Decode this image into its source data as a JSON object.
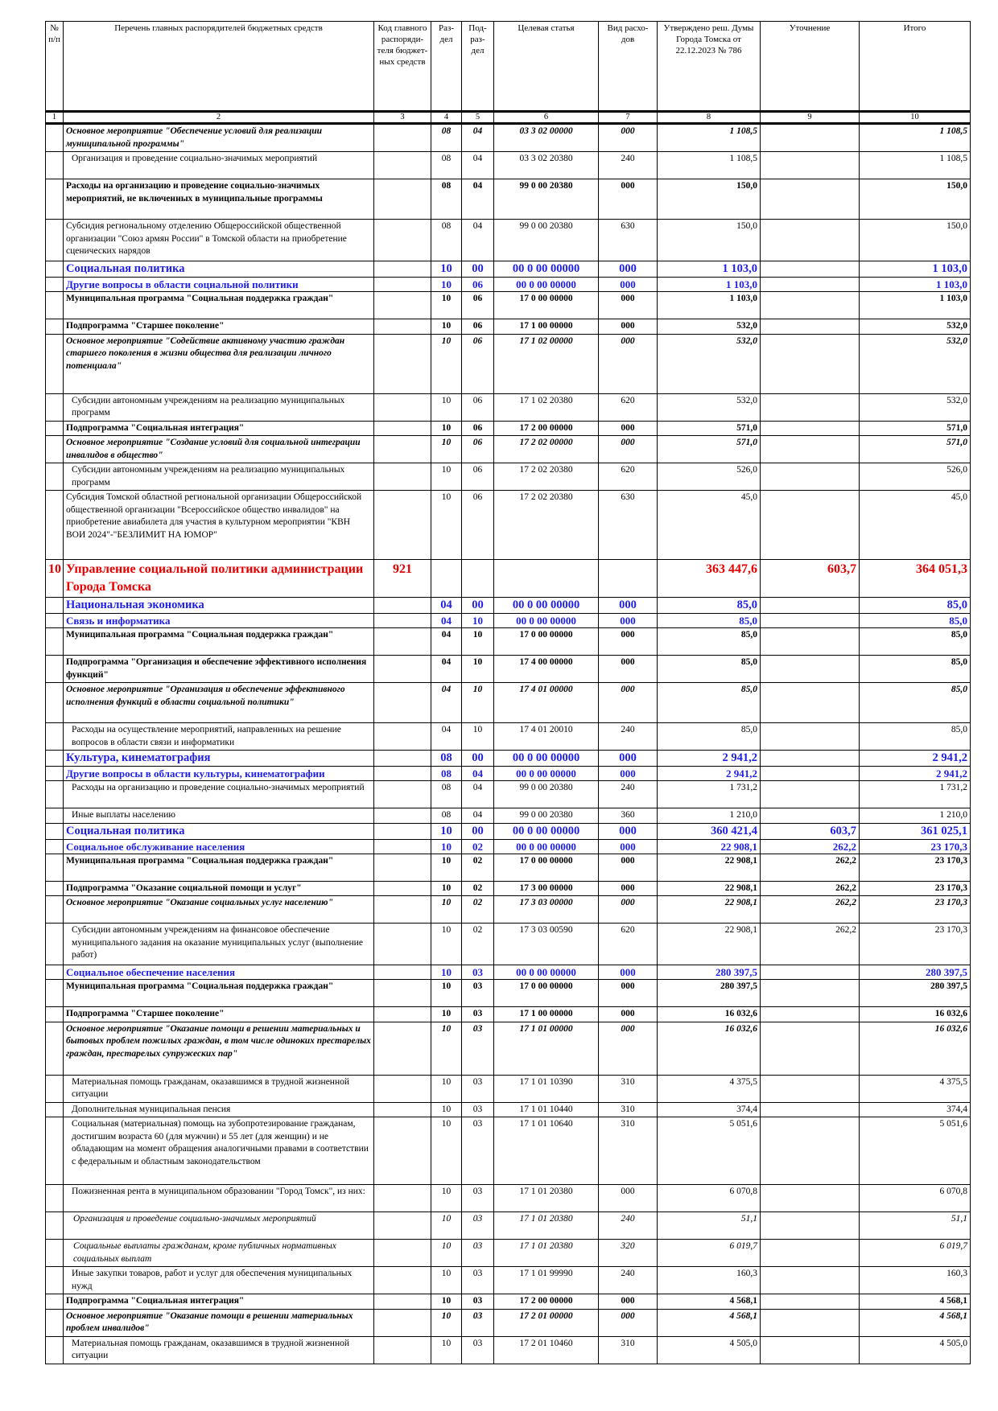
{
  "headers": {
    "c1": "№ п/п",
    "c2": "Перечень главных распорядителей бюджетных средств",
    "c3": "Код главного распоряди-теля бюджет-ных средств",
    "c4": "Раз-дел",
    "c5": "Под-раз-дел",
    "c6": "Целевая статья",
    "c7": "Вид расхо-дов",
    "c8": "Утверждено реш. Думы Города Томска от 22.12.2023 № 786",
    "c9": "Уточнение",
    "c10": "Итого"
  },
  "col_numbers": [
    "1",
    "2",
    "3",
    "4",
    "5",
    "6",
    "7",
    "8",
    "9",
    "10"
  ],
  "rows": [
    {
      "style": "ital",
      "h": 34,
      "n": "",
      "name": "Основное мероприятие \"Обеспечение условий для реализации муниципальной программы\"",
      "code": "",
      "rz": "08",
      "pr": "04",
      "cs": "03 3 02 00000",
      "vr": "000",
      "a": "1 108,5",
      "u": "",
      "t": "1 108,5"
    },
    {
      "style": "ind",
      "h": 34,
      "n": "",
      "name": "Организация и проведение социально-значимых мероприятий",
      "code": "",
      "rz": "08",
      "pr": "04",
      "cs": "03 3 02 20380",
      "vr": "240",
      "a": "1 108,5",
      "u": "",
      "t": "1 108,5"
    },
    {
      "style": "bold",
      "h": 50,
      "n": "",
      "name": "Расходы на организацию и проведение социально-значимых мероприятий, не включенных в муниципальные программы",
      "code": "",
      "rz": "08",
      "pr": "04",
      "cs": "99 0 00 20380",
      "vr": "000",
      "a": "150,0",
      "u": "",
      "t": "150,0"
    },
    {
      "style": "",
      "h": 52,
      "n": "",
      "name": "Субсидия региональному отделению Общероссийской общественной организации \"Союз армян России\" в Томской области на приобретение сценических нарядов",
      "code": "",
      "rz": "08",
      "pr": "04",
      "cs": "99 0 00 20380",
      "vr": "630",
      "a": "150,0",
      "u": "",
      "t": "150,0"
    },
    {
      "style": "section",
      "h": 19,
      "n": "",
      "name": "Социальная политика",
      "code": "",
      "rz": "10",
      "pr": "00",
      "cs": "00 0 00 00000",
      "vr": "000",
      "a": "1 103,0",
      "u": "",
      "t": "1 103,0"
    },
    {
      "style": "sub",
      "h": 17,
      "n": "",
      "name": "Другие вопросы в области социальной политики",
      "code": "",
      "rz": "10",
      "pr": "06",
      "cs": "00 0 00 00000",
      "vr": "000",
      "a": "1 103,0",
      "u": "",
      "t": "1 103,0"
    },
    {
      "style": "bold",
      "h": 34,
      "n": "",
      "name": "Муниципальная программа \"Социальная поддержка граждан\"",
      "code": "",
      "rz": "10",
      "pr": "06",
      "cs": "17 0 00 00000",
      "vr": "000",
      "a": "1 103,0",
      "u": "",
      "t": "1 103,0"
    },
    {
      "style": "bold",
      "h": 17,
      "n": "",
      "name": "Подпрограмма \"Старшее поколение\"",
      "code": "",
      "rz": "10",
      "pr": "06",
      "cs": "17 1 00 00000",
      "vr": "000",
      "a": "532,0",
      "u": "",
      "t": "532,0"
    },
    {
      "style": "ital",
      "h": 74,
      "n": "",
      "name": "Основное мероприятие \"Содействие активному участию граждан старшего поколения в жизни общества для реализации личного потенциала\"",
      "code": "",
      "rz": "10",
      "pr": "06",
      "cs": "17 1 02 00000",
      "vr": "000",
      "a": "532,0",
      "u": "",
      "t": "532,0"
    },
    {
      "style": "ind",
      "h": 34,
      "n": "",
      "name": "Субсидии автономным учреждениям на реализацию муниципальных программ",
      "code": "",
      "rz": "10",
      "pr": "06",
      "cs": "17 1 02 20380",
      "vr": "620",
      "a": "532,0",
      "u": "",
      "t": "532,0"
    },
    {
      "style": "bold",
      "h": 17,
      "n": "",
      "name": "Подпрограмма \"Социальная интеграция\"",
      "code": "",
      "rz": "10",
      "pr": "06",
      "cs": "17 2 00 00000",
      "vr": "000",
      "a": "571,0",
      "u": "",
      "t": "571,0"
    },
    {
      "style": "ital",
      "h": 34,
      "n": "",
      "name": "Основное мероприятие \"Создание условий для социальной интеграции инвалидов в общество\"",
      "code": "",
      "rz": "10",
      "pr": "06",
      "cs": "17 2 02 00000",
      "vr": "000",
      "a": "571,0",
      "u": "",
      "t": "571,0"
    },
    {
      "style": "ind",
      "h": 34,
      "n": "",
      "name": "Субсидии автономным учреждениям на реализацию муниципальных программ",
      "code": "",
      "rz": "10",
      "pr": "06",
      "cs": "17 2 02 20380",
      "vr": "620",
      "a": "526,0",
      "u": "",
      "t": "526,0"
    },
    {
      "style": "",
      "h": 86,
      "n": "",
      "name": "Субсидия Томской областной региональной организации Общероссийской общественной организации \"Всероссийское общество инвалидов\" на приобретение авиабилета для участия в культурном мероприятии \"КВН ВОИ 2024\"-\"БЕЗЛИМИТ НА ЮМОР\"",
      "code": "",
      "rz": "10",
      "pr": "06",
      "cs": "17 2 02 20380",
      "vr": "630",
      "a": "45,0",
      "u": "",
      "t": "45,0"
    },
    {
      "style": "org",
      "h": 46,
      "n": "10",
      "name": "Управление социальной политики администрации Города Томска",
      "code": "921",
      "rz": "",
      "pr": "",
      "cs": "",
      "vr": "",
      "a": "363 447,6",
      "u": "603,7",
      "t": "364 051,3"
    },
    {
      "style": "section",
      "h": 19,
      "n": "",
      "name": "Национальная экономика",
      "code": "",
      "rz": "04",
      "pr": "00",
      "cs": "00 0 00 00000",
      "vr": "000",
      "a": "85,0",
      "u": "",
      "t": "85,0"
    },
    {
      "style": "sub",
      "h": 17,
      "n": "",
      "name": "Связь и информатика",
      "code": "",
      "rz": "04",
      "pr": "10",
      "cs": "00 0 00 00000",
      "vr": "000",
      "a": "85,0",
      "u": "",
      "t": "85,0"
    },
    {
      "style": "bold",
      "h": 34,
      "n": "",
      "name": "Муниципальная программа \"Социальная поддержка граждан\"",
      "code": "",
      "rz": "04",
      "pr": "10",
      "cs": "17 0 00 00000",
      "vr": "000",
      "a": "85,0",
      "u": "",
      "t": "85,0"
    },
    {
      "style": "bold",
      "h": 34,
      "n": "",
      "name": "Подпрограмма \"Организация и обеспечение эффективного исполнения функций\"",
      "code": "",
      "rz": "04",
      "pr": "10",
      "cs": "17 4 00 00000",
      "vr": "000",
      "a": "85,0",
      "u": "",
      "t": "85,0"
    },
    {
      "style": "ital",
      "h": 50,
      "n": "",
      "name": "Основное мероприятие \"Организация и обеспечение эффективного исполнения функций в области социальной политики\"",
      "code": "",
      "rz": "04",
      "pr": "10",
      "cs": "17 4 01 00000",
      "vr": "000",
      "a": "85,0",
      "u": "",
      "t": "85,0"
    },
    {
      "style": "ind",
      "h": 34,
      "n": "",
      "name": "Расходы на осуществление мероприятий, направленных на решение вопросов в области связи и информатики",
      "code": "",
      "rz": "04",
      "pr": "10",
      "cs": "17 4 01 20010",
      "vr": "240",
      "a": "85,0",
      "u": "",
      "t": "85,0"
    },
    {
      "style": "section",
      "h": 19,
      "n": "",
      "name": "Культура, кинематография",
      "code": "",
      "rz": "08",
      "pr": "00",
      "cs": "00 0 00 00000",
      "vr": "000",
      "a": "2 941,2",
      "u": "",
      "t": "2 941,2"
    },
    {
      "style": "sub",
      "h": 17,
      "n": "",
      "name": "Другие вопросы в области культуры, кинематографии",
      "code": "",
      "rz": "08",
      "pr": "04",
      "cs": "00 0 00 00000",
      "vr": "000",
      "a": "2 941,2",
      "u": "",
      "t": "2 941,2"
    },
    {
      "style": "ind",
      "h": 34,
      "n": "",
      "name": "Расходы на организацию и проведение социально-значимых мероприятий",
      "code": "",
      "rz": "08",
      "pr": "04",
      "cs": "99 0 00 20380",
      "vr": "240",
      "a": "1 731,2",
      "u": "",
      "t": "1 731,2"
    },
    {
      "style": "ind",
      "h": 17,
      "n": "",
      "name": "Иные выплаты населению",
      "code": "",
      "rz": "08",
      "pr": "04",
      "cs": "99 0 00 20380",
      "vr": "360",
      "a": "1 210,0",
      "u": "",
      "t": "1 210,0"
    },
    {
      "style": "section",
      "h": 19,
      "n": "",
      "name": "Социальная политика",
      "code": "",
      "rz": "10",
      "pr": "00",
      "cs": "00 0 00 00000",
      "vr": "000",
      "a": "360 421,4",
      "u": "603,7",
      "t": "361 025,1"
    },
    {
      "style": "sub",
      "h": 17,
      "n": "",
      "name": "Социальное обслуживание населения",
      "code": "",
      "rz": "10",
      "pr": "02",
      "cs": "00 0 00 00000",
      "vr": "000",
      "a": "22 908,1",
      "u": "262,2",
      "t": "23 170,3"
    },
    {
      "style": "bold",
      "h": 34,
      "n": "",
      "name": "Муниципальная программа \"Социальная поддержка граждан\"",
      "code": "",
      "rz": "10",
      "pr": "02",
      "cs": "17 0 00 00000",
      "vr": "000",
      "a": "22 908,1",
      "u": "262,2",
      "t": "23 170,3"
    },
    {
      "style": "bold",
      "h": 17,
      "n": "",
      "name": "Подпрограмма \"Оказание социальной помощи и услуг\"",
      "code": "",
      "rz": "10",
      "pr": "02",
      "cs": "17 3 00 00000",
      "vr": "000",
      "a": "22 908,1",
      "u": "262,2",
      "t": "23 170,3"
    },
    {
      "style": "ital",
      "h": 34,
      "n": "",
      "name": "Основное мероприятие \"Оказание социальных услуг населению\"",
      "code": "",
      "rz": "10",
      "pr": "02",
      "cs": "17 3 03 00000",
      "vr": "000",
      "a": "22 908,1",
      "u": "262,2",
      "t": "23 170,3"
    },
    {
      "style": "ind",
      "h": 52,
      "n": "",
      "name": "Субсидии автономным учреждениям на финансовое обеспечение муниципального задания на оказание муниципальных услуг (выполнение работ)",
      "code": "",
      "rz": "10",
      "pr": "02",
      "cs": "17 3 03 00590",
      "vr": "620",
      "a": "22 908,1",
      "u": "262,2",
      "t": "23 170,3"
    },
    {
      "style": "sub",
      "h": 17,
      "n": "",
      "name": "Социальное обеспечение населения",
      "code": "",
      "rz": "10",
      "pr": "03",
      "cs": "00 0 00 00000",
      "vr": "000",
      "a": "280 397,5",
      "u": "",
      "t": "280 397,5"
    },
    {
      "style": "bold",
      "h": 34,
      "n": "",
      "name": "Муниципальная программа \"Социальная поддержка граждан\"",
      "code": "",
      "rz": "10",
      "pr": "03",
      "cs": "17 0 00 00000",
      "vr": "000",
      "a": "280 397,5",
      "u": "",
      "t": "280 397,5"
    },
    {
      "style": "bold",
      "h": 17,
      "n": "",
      "name": "Подпрограмма \"Старшее поколение\"",
      "code": "",
      "rz": "10",
      "pr": "03",
      "cs": "17 1 00 00000",
      "vr": "000",
      "a": "16 032,6",
      "u": "",
      "t": "16 032,6"
    },
    {
      "style": "ital",
      "h": 66,
      "n": "",
      "name": "Основное мероприятие \"Оказание помощи в решении материальных и бытовых проблем пожилых граждан, в том числе одиноких престарелых граждан, престарелых супружеских пар\"",
      "code": "",
      "rz": "10",
      "pr": "03",
      "cs": "17 1 01 00000",
      "vr": "000",
      "a": "16 032,6",
      "u": "",
      "t": "16 032,6"
    },
    {
      "style": "ind",
      "h": 34,
      "n": "",
      "name": "Материальная помощь гражданам, оказавшимся в трудной жизненной ситуации",
      "code": "",
      "rz": "10",
      "pr": "03",
      "cs": "17 1 01 10390",
      "vr": "310",
      "a": "4 375,5",
      "u": "",
      "t": "4 375,5"
    },
    {
      "style": "ind",
      "h": 17,
      "n": "",
      "name": "Дополнительная муниципальная пенсия",
      "code": "",
      "rz": "10",
      "pr": "03",
      "cs": "17 1 01 10440",
      "vr": "310",
      "a": "374,4",
      "u": "",
      "t": "374,4"
    },
    {
      "style": "ind",
      "h": 84,
      "n": "",
      "name": "Социальная (материальная) помощь на зубопротезирование гражданам, достигшим возраста 60 (для мужчин) и 55 лет (для женщин) и не обладающим на момент обращения аналогичными правами в соответствии с федеральным и областным законодательством",
      "code": "",
      "rz": "10",
      "pr": "03",
      "cs": "17 1 01 10640",
      "vr": "310",
      "a": "5 051,6",
      "u": "",
      "t": "5 051,6"
    },
    {
      "style": "ind",
      "h": 34,
      "n": "",
      "name": "Пожизненная рента в муниципальном образовании \"Город Томск\", из них:",
      "code": "",
      "rz": "10",
      "pr": "03",
      "cs": "17 1 01 20380",
      "vr": "000",
      "a": "6 070,8",
      "u": "",
      "t": "6 070,8"
    },
    {
      "style": "indi",
      "h": 34,
      "n": "",
      "name": "Организация и проведение социально-значимых мероприятий",
      "code": "",
      "rz": "10",
      "pr": "03",
      "cs": "17 1 01 20380",
      "vr": "240",
      "a": "51,1",
      "u": "",
      "t": "51,1"
    },
    {
      "style": "indi",
      "h": 34,
      "n": "",
      "name": "Социальные выплаты гражданам, кроме публичных нормативных социальных выплат",
      "code": "",
      "rz": "10",
      "pr": "03",
      "cs": "17 1 01 20380",
      "vr": "320",
      "a": "6 019,7",
      "u": "",
      "t": "6 019,7"
    },
    {
      "style": "ind",
      "h": 34,
      "n": "",
      "name": "Иные закупки товаров, работ и услуг для обеспечения муниципальных нужд",
      "code": "",
      "rz": "10",
      "pr": "03",
      "cs": "17 1 01 99990",
      "vr": "240",
      "a": "160,3",
      "u": "",
      "t": "160,3"
    },
    {
      "style": "bold",
      "h": 17,
      "n": "",
      "name": "Подпрограмма \"Социальная интеграция\"",
      "code": "",
      "rz": "10",
      "pr": "03",
      "cs": "17 2 00 00000",
      "vr": "000",
      "a": "4 568,1",
      "u": "",
      "t": "4 568,1"
    },
    {
      "style": "ital",
      "h": 34,
      "n": "",
      "name": "Основное мероприятие \"Оказание помощи в решении материальных проблем инвалидов\"",
      "code": "",
      "rz": "10",
      "pr": "03",
      "cs": "17 2 01 00000",
      "vr": "000",
      "a": "4 568,1",
      "u": "",
      "t": "4 568,1"
    },
    {
      "style": "ind",
      "h": 34,
      "n": "",
      "name": "Материальная помощь гражданам, оказавшимся в трудной жизненной ситуации",
      "code": "",
      "rz": "10",
      "pr": "03",
      "cs": "17 2 01 10460",
      "vr": "310",
      "a": "4 505,0",
      "u": "",
      "t": "4 505,0"
    }
  ]
}
